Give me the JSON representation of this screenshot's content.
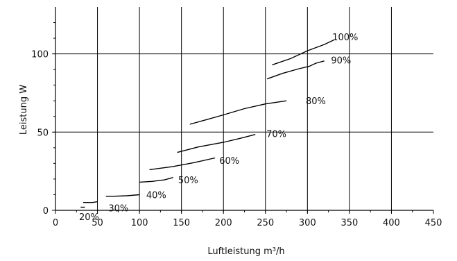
{
  "chart_data": {
    "type": "line",
    "xlabel": "Luftleistung m³/h",
    "ylabel": "Leistung W",
    "xlim": [
      0,
      450
    ],
    "ylim": [
      0,
      130
    ],
    "x_ticks": [
      0,
      50,
      100,
      150,
      200,
      250,
      300,
      350,
      400,
      450
    ],
    "y_ticks": [
      0,
      50,
      100
    ],
    "x_tick_labels": [
      "0",
      "50",
      "100",
      "150",
      "200",
      "250",
      "300",
      "350",
      "400",
      "450"
    ],
    "y_tick_labels": [
      "0",
      "50",
      "100"
    ],
    "grid": true,
    "series": [
      {
        "name": "20%",
        "points": [
          [
            30,
            2
          ],
          [
            35,
            2
          ]
        ]
      },
      {
        "name": "30%",
        "points": [
          [
            33,
            5
          ],
          [
            38,
            5
          ],
          [
            44,
            5
          ],
          [
            50,
            5.5
          ]
        ]
      },
      {
        "name": "40%",
        "points": [
          [
            60,
            9
          ],
          [
            70,
            9
          ],
          [
            85,
            9.3
          ],
          [
            100,
            10
          ]
        ]
      },
      {
        "name": "50%",
        "points": [
          [
            100,
            18
          ],
          [
            115,
            18.5
          ],
          [
            130,
            19.5
          ],
          [
            140,
            21
          ]
        ]
      },
      {
        "name": "60%",
        "points": [
          [
            112,
            26
          ],
          [
            140,
            28
          ],
          [
            165,
            30.5
          ],
          [
            190,
            33.5
          ]
        ]
      },
      {
        "name": "70%",
        "points": [
          [
            145,
            37
          ],
          [
            170,
            40.5
          ],
          [
            200,
            43.5
          ],
          [
            220,
            46
          ],
          [
            238,
            48.5
          ]
        ]
      },
      {
        "name": "80%",
        "points": [
          [
            160,
            55
          ],
          [
            180,
            58
          ],
          [
            200,
            61
          ],
          [
            225,
            65
          ],
          [
            250,
            68
          ],
          [
            275,
            70
          ]
        ]
      },
      {
        "name": "90%",
        "points": [
          [
            252,
            84
          ],
          [
            270,
            87.5
          ],
          [
            290,
            90.5
          ],
          [
            302,
            92
          ],
          [
            310,
            94
          ],
          [
            320,
            95.5
          ]
        ]
      },
      {
        "name": "100%",
        "points": [
          [
            258,
            93
          ],
          [
            280,
            97
          ],
          [
            300,
            102
          ],
          [
            320,
            106
          ],
          [
            332,
            109
          ]
        ]
      }
    ],
    "label_positions": [
      {
        "text": "20%",
        "x": 40,
        "y": -4
      },
      {
        "text": "30%",
        "x": 75,
        "y": 1.5
      },
      {
        "text": "40%",
        "x": 120,
        "y": 10
      },
      {
        "text": "50%",
        "x": 158,
        "y": 19.5
      },
      {
        "text": "60%",
        "x": 207,
        "y": 32
      },
      {
        "text": "70%",
        "x": 263,
        "y": 49
      },
      {
        "text": "80%",
        "x": 310,
        "y": 70
      },
      {
        "text": "90%",
        "x": 340,
        "y": 96
      },
      {
        "text": "100%",
        "x": 345,
        "y": 111
      }
    ]
  }
}
